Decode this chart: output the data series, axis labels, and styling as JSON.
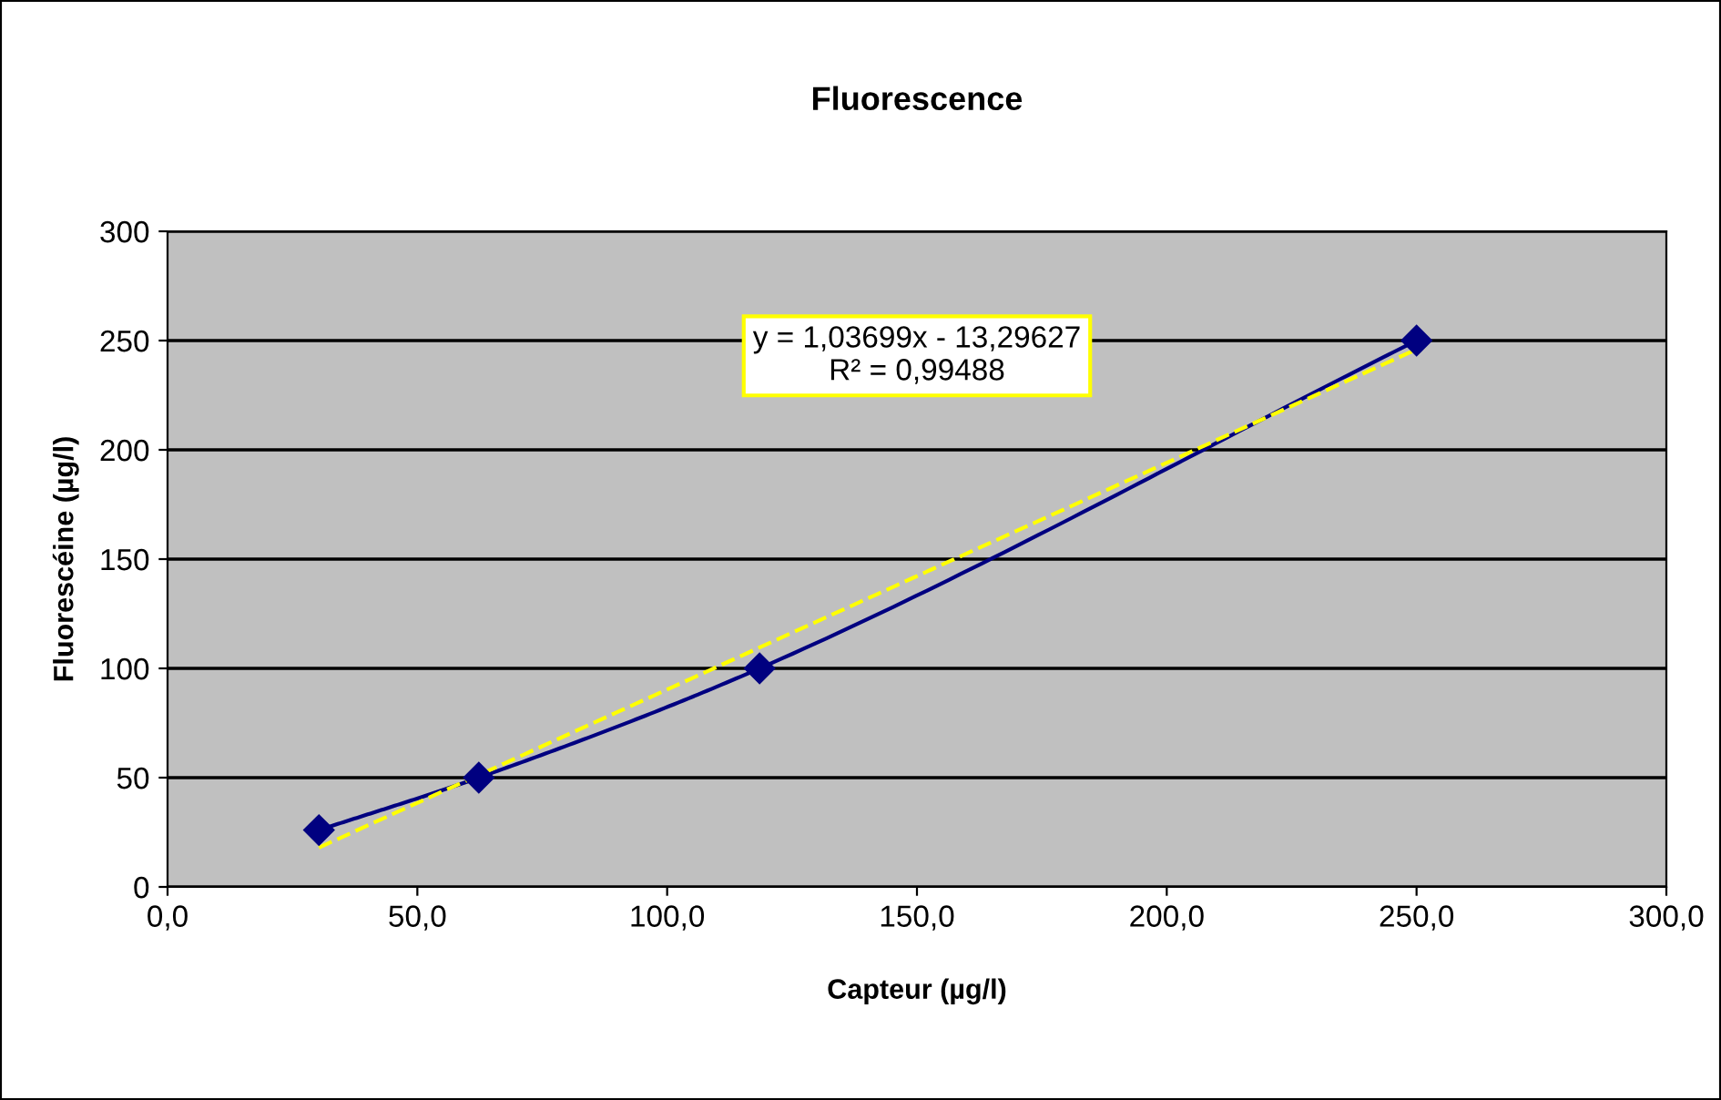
{
  "chart_data": {
    "type": "line",
    "title": "Fluorescence",
    "xlabel": "Capteur (µg/l)",
    "ylabel": "Fluorescéine (µg/l)",
    "series": [
      {
        "marker": "diamond",
        "color": "#000080",
        "x": [
          30.3,
          62.3,
          118.5,
          250
        ],
        "values": [
          26,
          50,
          100,
          250
        ]
      },
      {
        "line_style": "dashed",
        "marker": "none",
        "color": "#ffff00",
        "x": [
          30.3,
          250
        ],
        "values": [
          18,
          246
        ]
      }
    ],
    "annotations": [
      "y = 1,03699x - 13,29627\nR² = 0,99488"
    ],
    "xlim": [
      0,
      300
    ],
    "xticks": [
      {
        "value": 0,
        "label": "0,0"
      },
      {
        "value": 50,
        "label": "50,0"
      },
      {
        "value": 100,
        "label": "100,0"
      },
      {
        "value": 150,
        "label": "150,0"
      },
      {
        "value": 200,
        "label": "200,0"
      },
      {
        "value": 250,
        "label": "250,0"
      },
      {
        "value": 300,
        "label": "300,0"
      }
    ],
    "ylim": [
      0,
      300
    ],
    "yticks": [
      0,
      50,
      100,
      150,
      200,
      250,
      300
    ],
    "grid": "y",
    "legend": false
  }
}
